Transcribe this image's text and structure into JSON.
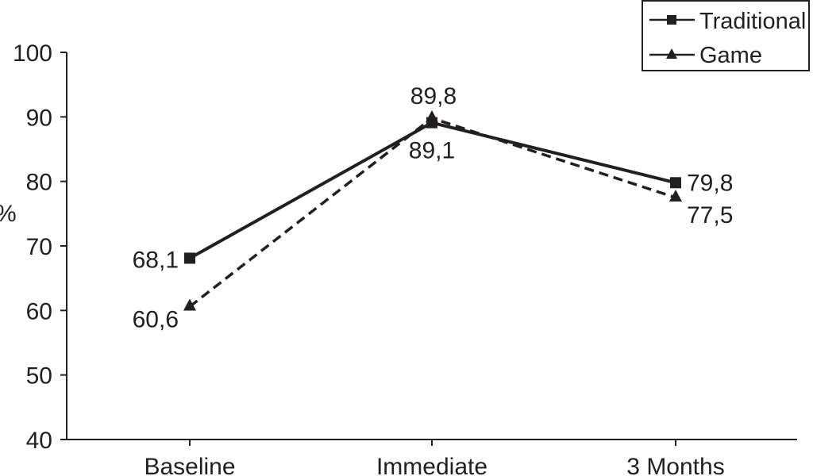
{
  "chart_data": {
    "type": "line",
    "title": "",
    "xlabel": "",
    "ylabel": "%",
    "categories": [
      "Baseline",
      "Immediate",
      "3 Months"
    ],
    "ylim": [
      40,
      100
    ],
    "yticks": [
      40,
      50,
      60,
      70,
      80,
      90,
      100
    ],
    "grid": false,
    "legend_position": "top-right",
    "series": [
      {
        "name": "Traditional",
        "values": [
          68.1,
          89.1,
          79.8
        ],
        "labels": [
          "68,1",
          "89,1",
          "79,8"
        ],
        "marker": "square",
        "line_style": "solid",
        "color": "#231f20"
      },
      {
        "name": "Game",
        "values": [
          60.6,
          89.8,
          77.5
        ],
        "labels": [
          "60,6",
          "89,8",
          "77,5"
        ],
        "marker": "triangle",
        "line_style": "dashed",
        "color": "#231f20"
      }
    ]
  }
}
